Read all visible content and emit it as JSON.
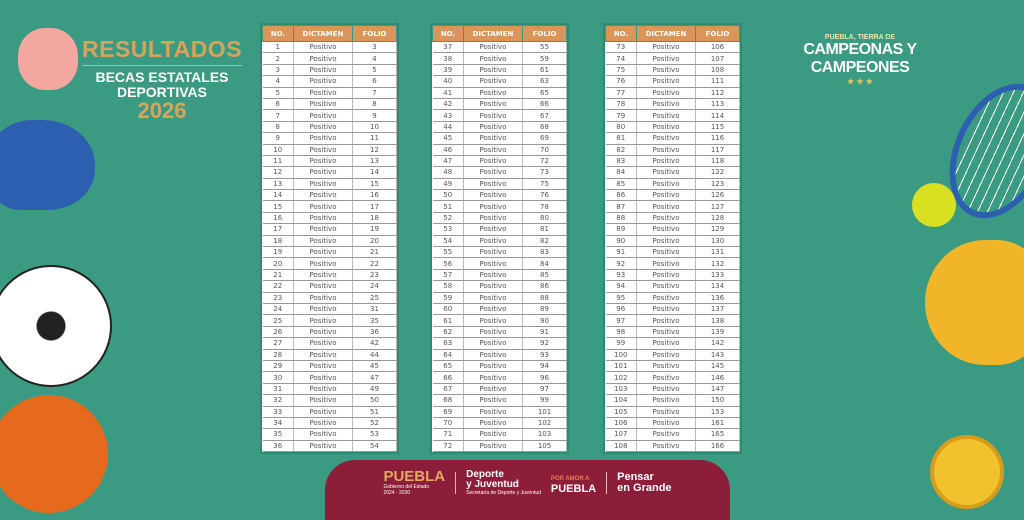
{
  "header": {
    "title": "RESULTADOS",
    "subtitle_line1": "BECAS ESTATALES",
    "subtitle_line2": "DEPORTIVAS",
    "year": "2026"
  },
  "slogan": {
    "line1": "PUEBLA, TIERRA DE",
    "line2": "CAMPEONAS Y CAMPEONES"
  },
  "table_headers": [
    "NO.",
    "DICTAMEN",
    "FOLIO"
  ],
  "dictamen_value": "Positivo",
  "tables": [
    {
      "no_start": 1,
      "folios": [
        3,
        4,
        5,
        6,
        7,
        8,
        9,
        10,
        11,
        12,
        13,
        14,
        15,
        16,
        17,
        18,
        19,
        20,
        21,
        22,
        23,
        24,
        25,
        31,
        35,
        36,
        42,
        44,
        45,
        47,
        49,
        50,
        51,
        52,
        53,
        54
      ]
    },
    {
      "no_start": 37,
      "folios": [
        55,
        59,
        61,
        63,
        65,
        66,
        67,
        68,
        69,
        70,
        72,
        73,
        75,
        76,
        78,
        80,
        81,
        82,
        83,
        84,
        85,
        86,
        88,
        89,
        90,
        91,
        92,
        93,
        94,
        96,
        97,
        99,
        101,
        102,
        103,
        105
      ]
    },
    {
      "no_start": 73,
      "folios": [
        106,
        107,
        108,
        111,
        112,
        113,
        114,
        115,
        116,
        117,
        118,
        122,
        123,
        126,
        127,
        128,
        129,
        130,
        131,
        132,
        133,
        134,
        136,
        137,
        138,
        139,
        142,
        143,
        145,
        146,
        147,
        150,
        153,
        161,
        165,
        166
      ]
    }
  ],
  "footer": {
    "puebla": "PUEBLA",
    "gobierno": "Gobierno del Estado",
    "years": "2024 · 2030",
    "deporte_line1": "Deporte",
    "deporte_line2": "y Juventud",
    "deporte_sub": "Secretaría de Deporte y Juventud",
    "amor_small": "POR AMOR A",
    "amor_big": "PUEBLA",
    "pensar_line1": "Pensar",
    "pensar_line2": "en Grande"
  },
  "colors": {
    "background": "#3b9a82",
    "accent": "#d9955a",
    "footer": "#8c1e3a"
  }
}
